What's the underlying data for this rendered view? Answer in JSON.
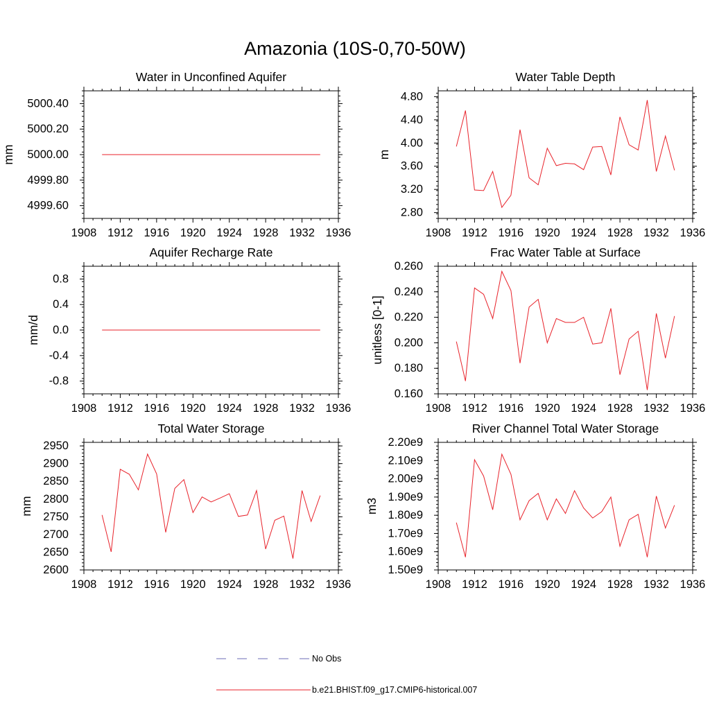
{
  "title": "Amazonia (10S-0,70-50W)",
  "legend": {
    "items": [
      {
        "label": "No Obs",
        "color": "#6b6bb5",
        "dash": true
      },
      {
        "label": "b.e21.BHIST.f09_g17.CMIP6-historical.007",
        "color": "#e8222a",
        "dash": false
      }
    ]
  },
  "chart_data": [
    {
      "type": "line",
      "title": "Water in Unconfined Aquifer",
      "ylabel": "mm",
      "xlim": [
        1908,
        1936
      ],
      "ylim": [
        4999.5,
        5000.5
      ],
      "xticks": [
        1908,
        1912,
        1916,
        1920,
        1924,
        1928,
        1932,
        1936
      ],
      "xticklabels": [
        "1908",
        "1912",
        "1916",
        "1920",
        "1924",
        "1928",
        "1932",
        "1936"
      ],
      "yticks": [
        4999.6,
        4999.8,
        5000.0,
        5000.2,
        5000.4
      ],
      "yticklabels": [
        "4999.60",
        "4999.80",
        "5000.00",
        "5000.20",
        "5000.40"
      ],
      "x": [
        1910,
        1911,
        1912,
        1913,
        1914,
        1915,
        1916,
        1917,
        1918,
        1919,
        1920,
        1921,
        1922,
        1923,
        1924,
        1925,
        1926,
        1927,
        1928,
        1929,
        1930,
        1931,
        1932,
        1933,
        1934
      ],
      "series": [
        {
          "color": "#e8222a",
          "values": [
            5000,
            5000,
            5000,
            5000,
            5000,
            5000,
            5000,
            5000,
            5000,
            5000,
            5000,
            5000,
            5000,
            5000,
            5000,
            5000,
            5000,
            5000,
            5000,
            5000,
            5000,
            5000,
            5000,
            5000,
            5000
          ]
        }
      ]
    },
    {
      "type": "line",
      "title": "Water Table Depth",
      "ylabel": "m",
      "xlim": [
        1908,
        1936
      ],
      "ylim": [
        2.7,
        4.9
      ],
      "xticks": [
        1908,
        1912,
        1916,
        1920,
        1924,
        1928,
        1932,
        1936
      ],
      "xticklabels": [
        "1908",
        "1912",
        "1916",
        "1920",
        "1924",
        "1928",
        "1932",
        "1936"
      ],
      "yticks": [
        2.8,
        3.2,
        3.6,
        4.0,
        4.4,
        4.8
      ],
      "yticklabels": [
        "2.80",
        "3.20",
        "3.60",
        "4.00",
        "4.40",
        "4.80"
      ],
      "x": [
        1910,
        1911,
        1912,
        1913,
        1914,
        1915,
        1916,
        1917,
        1918,
        1919,
        1920,
        1921,
        1922,
        1923,
        1924,
        1925,
        1926,
        1927,
        1928,
        1929,
        1930,
        1931,
        1932,
        1933,
        1934
      ],
      "series": [
        {
          "color": "#e8222a",
          "values": [
            3.94,
            4.56,
            3.19,
            3.18,
            3.51,
            2.89,
            3.1,
            4.23,
            3.4,
            3.28,
            3.91,
            3.61,
            3.65,
            3.64,
            3.54,
            3.93,
            3.94,
            3.45,
            4.45,
            3.97,
            3.88,
            4.74,
            3.51,
            4.12,
            3.53
          ]
        }
      ]
    },
    {
      "type": "line",
      "title": "Aquifer Recharge Rate",
      "ylabel": "mm/d",
      "xlim": [
        1908,
        1936
      ],
      "ylim": [
        -1.0,
        1.0
      ],
      "xticks": [
        1908,
        1912,
        1916,
        1920,
        1924,
        1928,
        1932,
        1936
      ],
      "xticklabels": [
        "1908",
        "1912",
        "1916",
        "1920",
        "1924",
        "1928",
        "1932",
        "1936"
      ],
      "yticks": [
        -0.8,
        -0.4,
        0.0,
        0.4,
        0.8
      ],
      "yticklabels": [
        "-0.8",
        "-0.4",
        "0.0",
        "0.4",
        "0.8"
      ],
      "x": [
        1910,
        1911,
        1912,
        1913,
        1914,
        1915,
        1916,
        1917,
        1918,
        1919,
        1920,
        1921,
        1922,
        1923,
        1924,
        1925,
        1926,
        1927,
        1928,
        1929,
        1930,
        1931,
        1932,
        1933,
        1934
      ],
      "series": [
        {
          "color": "#e8222a",
          "values": [
            0,
            0,
            0,
            0,
            0,
            0,
            0,
            0,
            0,
            0,
            0,
            0,
            0,
            0,
            0,
            0,
            0,
            0,
            0,
            0,
            0,
            0,
            0,
            0,
            0
          ]
        }
      ]
    },
    {
      "type": "line",
      "title": "Frac Water Table at Surface",
      "ylabel": "unitless [0-1]",
      "xlim": [
        1908,
        1936
      ],
      "ylim": [
        0.16,
        0.26
      ],
      "xticks": [
        1908,
        1912,
        1916,
        1920,
        1924,
        1928,
        1932,
        1936
      ],
      "xticklabels": [
        "1908",
        "1912",
        "1916",
        "1920",
        "1924",
        "1928",
        "1932",
        "1936"
      ],
      "yticks": [
        0.16,
        0.18,
        0.2,
        0.22,
        0.24,
        0.26
      ],
      "yticklabels": [
        "0.160",
        "0.180",
        "0.200",
        "0.220",
        "0.240",
        "0.260"
      ],
      "x": [
        1910,
        1911,
        1912,
        1913,
        1914,
        1915,
        1916,
        1917,
        1918,
        1919,
        1920,
        1921,
        1922,
        1923,
        1924,
        1925,
        1926,
        1927,
        1928,
        1929,
        1930,
        1931,
        1932,
        1933,
        1934
      ],
      "series": [
        {
          "color": "#e8222a",
          "values": [
            0.201,
            0.17,
            0.243,
            0.238,
            0.219,
            0.256,
            0.241,
            0.184,
            0.228,
            0.234,
            0.2,
            0.219,
            0.216,
            0.216,
            0.22,
            0.199,
            0.2,
            0.227,
            0.175,
            0.203,
            0.209,
            0.163,
            0.223,
            0.188,
            0.221
          ]
        }
      ]
    },
    {
      "type": "line",
      "title": "Total Water Storage",
      "ylabel": "mm",
      "xlim": [
        1908,
        1936
      ],
      "ylim": [
        2600,
        2960
      ],
      "xticks": [
        1908,
        1912,
        1916,
        1920,
        1924,
        1928,
        1932,
        1936
      ],
      "xticklabels": [
        "1908",
        "1912",
        "1916",
        "1920",
        "1924",
        "1928",
        "1932",
        "1936"
      ],
      "yticks": [
        2600,
        2650,
        2700,
        2750,
        2800,
        2850,
        2900,
        2950
      ],
      "yticklabels": [
        "2600",
        "2650",
        "2700",
        "2750",
        "2800",
        "2850",
        "2900",
        "2950"
      ],
      "x": [
        1910,
        1911,
        1912,
        1913,
        1914,
        1915,
        1916,
        1917,
        1918,
        1919,
        1920,
        1921,
        1922,
        1923,
        1924,
        1925,
        1926,
        1927,
        1928,
        1929,
        1930,
        1931,
        1932,
        1933,
        1934
      ],
      "series": [
        {
          "color": "#e8222a",
          "values": [
            2755,
            2651,
            2884,
            2870,
            2826,
            2927,
            2871,
            2706,
            2830,
            2855,
            2762,
            2806,
            2792,
            2803,
            2815,
            2751,
            2755,
            2824,
            2659,
            2740,
            2752,
            2632,
            2824,
            2737,
            2810
          ]
        }
      ]
    },
    {
      "type": "line",
      "title": "River Channel Total Water Storage",
      "ylabel": "m3",
      "xlim": [
        1908,
        1936
      ],
      "ylim": [
        1.5,
        2.2
      ],
      "xticks": [
        1908,
        1912,
        1916,
        1920,
        1924,
        1928,
        1932,
        1936
      ],
      "xticklabels": [
        "1908",
        "1912",
        "1916",
        "1920",
        "1924",
        "1928",
        "1932",
        "1936"
      ],
      "yticks": [
        1.5,
        1.6,
        1.7,
        1.8,
        1.9,
        2.0,
        2.1,
        2.2
      ],
      "yticklabels": [
        "1.50e9",
        "1.60e9",
        "1.70e9",
        "1.80e9",
        "1.90e9",
        "2.00e9",
        "2.10e9",
        "2.20e9"
      ],
      "x": [
        1910,
        1911,
        1912,
        1913,
        1914,
        1915,
        1916,
        1917,
        1918,
        1919,
        1920,
        1921,
        1922,
        1923,
        1924,
        1925,
        1926,
        1927,
        1928,
        1929,
        1930,
        1931,
        1932,
        1933,
        1934
      ],
      "series": [
        {
          "color": "#e8222a",
          "values": [
            1.76,
            1.57,
            2.105,
            2.015,
            1.83,
            2.135,
            2.025,
            1.775,
            1.88,
            1.92,
            1.775,
            1.89,
            1.81,
            1.935,
            1.84,
            1.785,
            1.82,
            1.9,
            1.63,
            1.775,
            1.805,
            1.57,
            1.905,
            1.73,
            1.855
          ]
        }
      ]
    }
  ]
}
